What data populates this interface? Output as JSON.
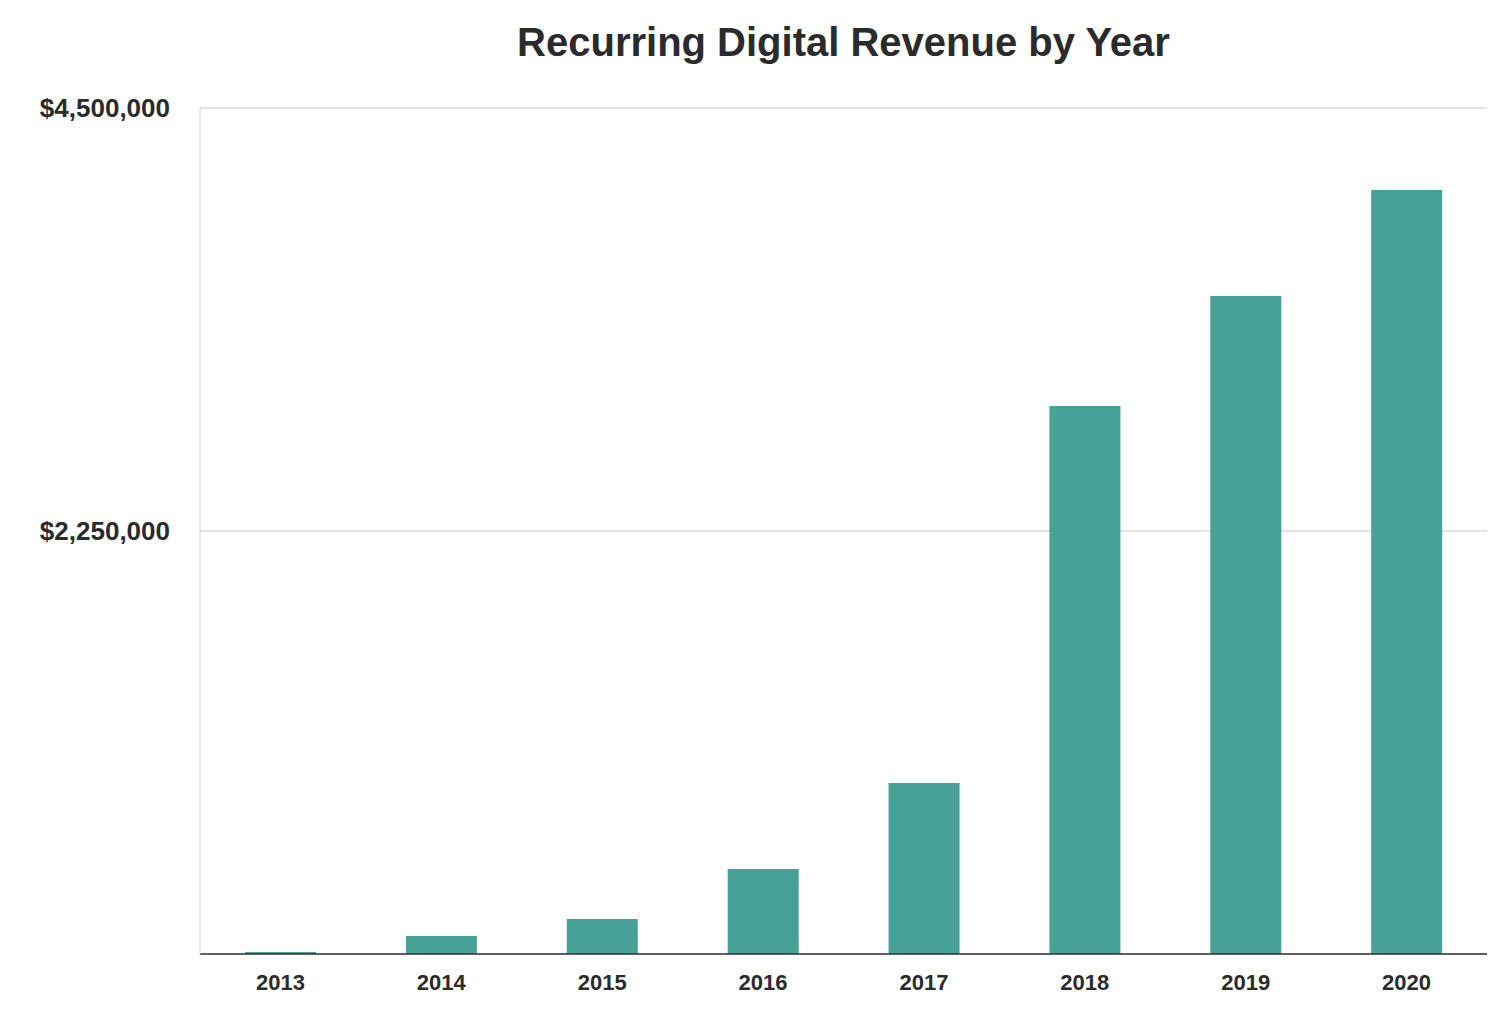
{
  "chart_data": {
    "type": "bar",
    "title": "Recurring Digital Revenue by Year",
    "categories": [
      "2013",
      "2014",
      "2015",
      "2016",
      "2017",
      "2018",
      "2019",
      "2020"
    ],
    "values": [
      10000,
      96000,
      186000,
      452000,
      910000,
      2915000,
      3500000,
      4064000
    ],
    "color": "#48a197",
    "ylim": [
      0,
      4500000
    ],
    "yticks": [
      {
        "value": 2250000,
        "label": "$2,250,000"
      },
      {
        "value": 4500000,
        "label": "$4,500,000"
      }
    ],
    "grid": true
  }
}
